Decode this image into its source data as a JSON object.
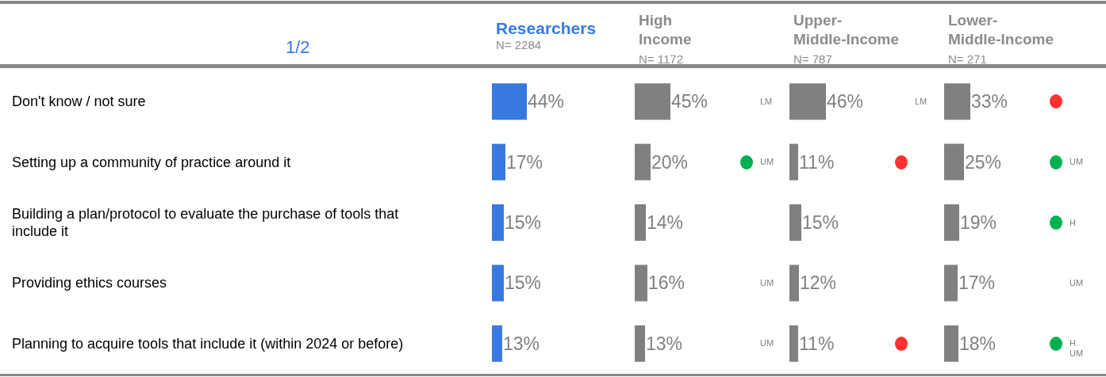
{
  "chart_data": [
    {
      "type": "bar",
      "orientation": "horizontal",
      "title": "Researchers",
      "subtitle": "N= 2284",
      "categories": [
        "Don't know / not sure",
        "Setting up a community of practice around it",
        "Building a plan/protocol to evaluate the purchase of tools that include it",
        "Providing ethics courses",
        "Planning to acquire tools that include it (within 2024 or before)"
      ],
      "values": [
        44,
        17,
        15,
        15,
        13
      ],
      "value_labels": [
        "44%",
        "17%",
        "15%",
        "15%",
        "13%"
      ],
      "color": "#3779e1",
      "tick_labels": "y",
      "annotations": [
        "1/2"
      ]
    },
    {
      "type": "bar",
      "orientation": "horizontal",
      "title": "High\nIncome",
      "subtitle": "N= 1172",
      "categories": [
        null,
        null,
        null,
        null,
        null
      ],
      "values": [
        45,
        20,
        14,
        16,
        13
      ],
      "value_labels": [
        "45%",
        "20%",
        "14%",
        "16%",
        "13%"
      ],
      "color": "#808080",
      "tick_labels": false,
      "annotations": [
        "LM",
        "UM",
        "UM",
        "UM"
      ]
    },
    {
      "type": "bar",
      "orientation": "horizontal",
      "title": "Upper-\nMiddle-Income",
      "subtitle": "N= 787",
      "categories": [
        null,
        null,
        null,
        null,
        null
      ],
      "values": [
        46,
        11,
        15,
        12,
        11
      ],
      "value_labels": [
        "46%",
        "11%",
        "15%",
        "12%",
        "11%"
      ],
      "color": "#808080",
      "tick_labels": false,
      "annotations": [
        "LM"
      ]
    },
    {
      "type": "bar",
      "orientation": "horizontal",
      "title": "Lower-\nMiddle-Income",
      "subtitle": "N= 271",
      "categories": [
        null,
        null,
        null,
        null,
        null
      ],
      "values": [
        33,
        25,
        19,
        17,
        18
      ],
      "value_labels": [
        "33%",
        "25%",
        "19%",
        "17%",
        "18%"
      ],
      "color": "#808080",
      "tick_labels": false,
      "annotations": [
        "UM",
        "H",
        "UM",
        "H",
        "UM"
      ]
    }
  ]
}
